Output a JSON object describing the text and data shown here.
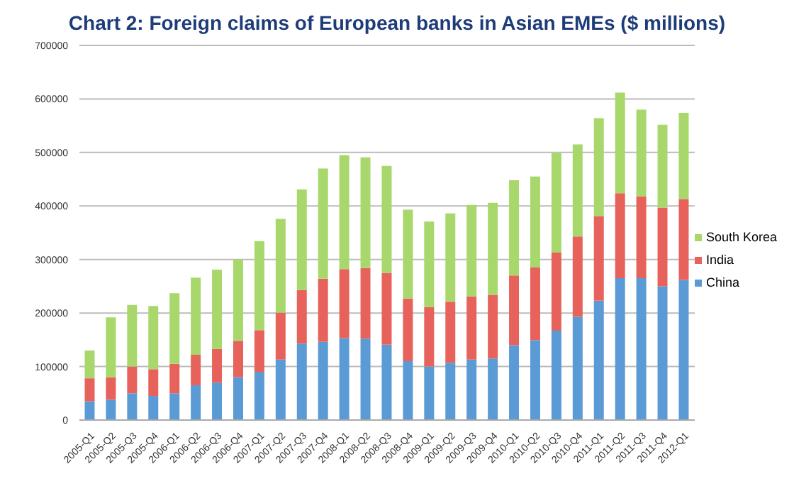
{
  "chart_data": {
    "type": "bar",
    "stacked": true,
    "title": "Chart 2: Foreign claims of European banks in Asian EMEs ($ millions)",
    "categories": [
      "2005-Q1",
      "2005-Q2",
      "2005-Q3",
      "2005-Q4",
      "2006-Q1",
      "2006-Q2",
      "2006-Q3",
      "2006-Q4",
      "2007-Q1",
      "2007-Q2",
      "2007-Q3",
      "2007-Q4",
      "2008-Q1",
      "2008-Q2",
      "2008-Q3",
      "2008-Q4",
      "2009-Q1",
      "2009-Q2",
      "2009-Q3",
      "2009-Q4",
      "2010-Q1",
      "2010-Q2",
      "2010-Q3",
      "2010-Q4",
      "2011-Q1",
      "2011-Q2",
      "2011-Q3",
      "2011-Q4",
      "2012-Q1"
    ],
    "series": [
      {
        "name": "China",
        "color": "#5b9bd5",
        "values": [
          35000,
          38000,
          50000,
          45000,
          50000,
          65000,
          70000,
          80000,
          90000,
          113000,
          143000,
          146000,
          153000,
          152000,
          141000,
          110000,
          100000,
          107000,
          113000,
          115000,
          140000,
          149000,
          167000,
          193000,
          223000,
          265000,
          265000,
          250000,
          262000
        ]
      },
      {
        "name": "India",
        "color": "#e8625c",
        "values": [
          43000,
          42000,
          50000,
          50000,
          55000,
          57000,
          63000,
          68000,
          78000,
          88000,
          100000,
          118000,
          129000,
          132000,
          134000,
          117000,
          111000,
          114000,
          118000,
          119000,
          130000,
          136000,
          146000,
          150000,
          158000,
          159000,
          153000,
          147000,
          151000
        ]
      },
      {
        "name": "South Korea",
        "color": "#a8d86c",
        "values": [
          52000,
          112000,
          115000,
          118000,
          132000,
          144000,
          148000,
          152000,
          166000,
          175000,
          188000,
          206000,
          213000,
          207000,
          200000,
          166000,
          160000,
          165000,
          171000,
          172000,
          178000,
          170000,
          186000,
          172000,
          183000,
          188000,
          162000,
          155000,
          161000
        ]
      }
    ],
    "ylim": [
      0,
      700000
    ],
    "yticks": [
      0,
      100000,
      200000,
      300000,
      400000,
      500000,
      600000,
      700000
    ],
    "grid": "y",
    "legend": "right"
  }
}
